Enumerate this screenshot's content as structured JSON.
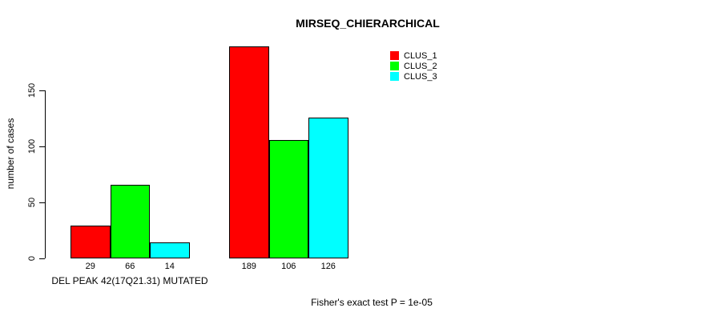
{
  "chart_data": {
    "type": "bar",
    "title": "MIRSEQ_CHIERARCHICAL",
    "ylabel": "number of cases",
    "xlabel": "DEL PEAK 42(17Q21.31) MUTATED",
    "annotation": "Fisher's exact test P = 1e-05",
    "ylim": [
      0,
      150
    ],
    "yticks": [
      0,
      50,
      100,
      150
    ],
    "grid": false,
    "legend_position": "top-right",
    "categories": [
      "DEL PEAK 42(17Q21.31) MUTATED",
      ""
    ],
    "series": [
      {
        "name": "CLUS_1",
        "color": "#ff0000",
        "values": [
          29,
          189
        ]
      },
      {
        "name": "CLUS_2",
        "color": "#00ff00",
        "values": [
          66,
          106
        ]
      },
      {
        "name": "CLUS_3",
        "color": "#00ffff",
        "values": [
          14,
          126
        ]
      }
    ]
  }
}
